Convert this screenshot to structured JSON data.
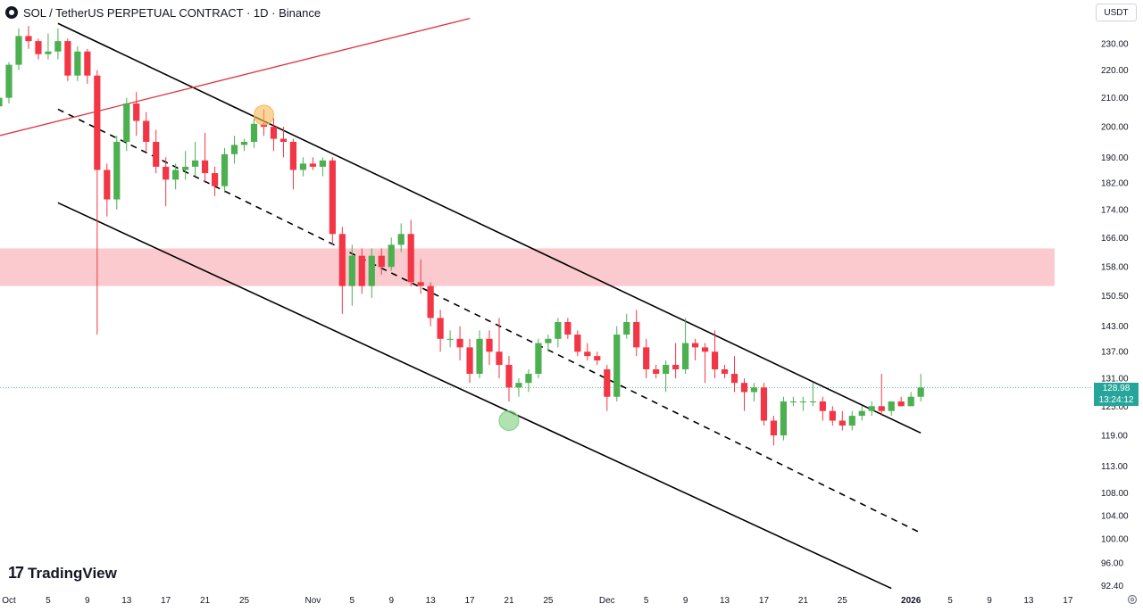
{
  "header": {
    "title": "SOL / TetherUS PERPETUAL CONTRACT · 1D · Binance",
    "currency": "USDT"
  },
  "logo_text": "TradingView",
  "last_price": {
    "price": "128.98",
    "countdown": "13:24:12",
    "value": 128.98
  },
  "colors": {
    "up": "#4caf50",
    "down": "#f23645",
    "zone": "#f8b8bd",
    "channel": "#000000",
    "resistance": "#e0303d",
    "price_line": "#26a69a",
    "peak_marker": "#f7b955",
    "low_marker": "#7ccf7e"
  },
  "chart_data": {
    "type": "candlestick",
    "scale": "log",
    "y_ticks": [
      "230.00",
      "220.00",
      "210.00",
      "200.00",
      "190.00",
      "182.00",
      "174.00",
      "166.00",
      "158.00",
      "150.50",
      "143.00",
      "137.00",
      "131.00",
      "125.00",
      "119.00",
      "113.00",
      "108.00",
      "104.00",
      "100.00",
      "96.00",
      "92.40"
    ],
    "y_tick_values": [
      230,
      220,
      210,
      200,
      190,
      182,
      174,
      166,
      158,
      150.5,
      143,
      137,
      131,
      125,
      119,
      113,
      108,
      104,
      100,
      96,
      92.4
    ],
    "x_ticks": [
      {
        "label": "Oct",
        "date": "2025-10-01"
      },
      {
        "label": "5",
        "date": "2025-10-05"
      },
      {
        "label": "9",
        "date": "2025-10-09"
      },
      {
        "label": "13",
        "date": "2025-10-13"
      },
      {
        "label": "17",
        "date": "2025-10-17"
      },
      {
        "label": "21",
        "date": "2025-10-21"
      },
      {
        "label": "25",
        "date": "2025-10-25"
      },
      {
        "label": "Nov",
        "date": "2025-11-01"
      },
      {
        "label": "5",
        "date": "2025-11-05"
      },
      {
        "label": "9",
        "date": "2025-11-09"
      },
      {
        "label": "13",
        "date": "2025-11-13"
      },
      {
        "label": "17",
        "date": "2025-11-17"
      },
      {
        "label": "21",
        "date": "2025-11-21"
      },
      {
        "label": "25",
        "date": "2025-11-25"
      },
      {
        "label": "Dec",
        "date": "2025-12-01"
      },
      {
        "label": "5",
        "date": "2025-12-05"
      },
      {
        "label": "9",
        "date": "2025-12-09"
      },
      {
        "label": "13",
        "date": "2025-12-13"
      },
      {
        "label": "17",
        "date": "2025-12-17"
      },
      {
        "label": "21",
        "date": "2025-12-21"
      },
      {
        "label": "25",
        "date": "2025-12-25"
      },
      {
        "label": "2026",
        "date": "2026-01-01",
        "bold": true
      },
      {
        "label": "5",
        "date": "2026-01-05"
      },
      {
        "label": "9",
        "date": "2026-01-09"
      },
      {
        "label": "13",
        "date": "2026-01-13"
      },
      {
        "label": "17",
        "date": "2026-01-17"
      }
    ],
    "candles": [
      {
        "date": "2025-09-30",
        "o": 207,
        "h": 212,
        "l": 205,
        "c": 210
      },
      {
        "date": "2025-10-01",
        "o": 210,
        "h": 223,
        "l": 208,
        "c": 222
      },
      {
        "date": "2025-10-02",
        "o": 222,
        "h": 236,
        "l": 220,
        "c": 233
      },
      {
        "date": "2025-10-03",
        "o": 233,
        "h": 237,
        "l": 228,
        "c": 231
      },
      {
        "date": "2025-10-04",
        "o": 231,
        "h": 232,
        "l": 224,
        "c": 226
      },
      {
        "date": "2025-10-05",
        "o": 226,
        "h": 234,
        "l": 224,
        "c": 227
      },
      {
        "date": "2025-10-06",
        "o": 227,
        "h": 236,
        "l": 224,
        "c": 231
      },
      {
        "date": "2025-10-07",
        "o": 231,
        "h": 232,
        "l": 216,
        "c": 218
      },
      {
        "date": "2025-10-08",
        "o": 218,
        "h": 229,
        "l": 216,
        "c": 227
      },
      {
        "date": "2025-10-09",
        "o": 227,
        "h": 228,
        "l": 215,
        "c": 218
      },
      {
        "date": "2025-10-10",
        "o": 218,
        "h": 220,
        "l": 141,
        "c": 186
      },
      {
        "date": "2025-10-11",
        "o": 186,
        "h": 188,
        "l": 172,
        "c": 177
      },
      {
        "date": "2025-10-12",
        "o": 177,
        "h": 197,
        "l": 174,
        "c": 195
      },
      {
        "date": "2025-10-13",
        "o": 195,
        "h": 210,
        "l": 192,
        "c": 208
      },
      {
        "date": "2025-10-14",
        "o": 208,
        "h": 212,
        "l": 197,
        "c": 202
      },
      {
        "date": "2025-10-15",
        "o": 202,
        "h": 205,
        "l": 192,
        "c": 195
      },
      {
        "date": "2025-10-16",
        "o": 195,
        "h": 199,
        "l": 185,
        "c": 187
      },
      {
        "date": "2025-10-17",
        "o": 187,
        "h": 190,
        "l": 175,
        "c": 183
      },
      {
        "date": "2025-10-18",
        "o": 183,
        "h": 188,
        "l": 180,
        "c": 186
      },
      {
        "date": "2025-10-19",
        "o": 186,
        "h": 192,
        "l": 183,
        "c": 187
      },
      {
        "date": "2025-10-20",
        "o": 187,
        "h": 195,
        "l": 184,
        "c": 189
      },
      {
        "date": "2025-10-21",
        "o": 189,
        "h": 198,
        "l": 182,
        "c": 185
      },
      {
        "date": "2025-10-22",
        "o": 185,
        "h": 187,
        "l": 178,
        "c": 181
      },
      {
        "date": "2025-10-23",
        "o": 181,
        "h": 193,
        "l": 179,
        "c": 191
      },
      {
        "date": "2025-10-24",
        "o": 191,
        "h": 197,
        "l": 188,
        "c": 194
      },
      {
        "date": "2025-10-25",
        "o": 194,
        "h": 196,
        "l": 192,
        "c": 195
      },
      {
        "date": "2025-10-26",
        "o": 195,
        "h": 203,
        "l": 193,
        "c": 201
      },
      {
        "date": "2025-10-27",
        "o": 201,
        "h": 206,
        "l": 197,
        "c": 200
      },
      {
        "date": "2025-10-28",
        "o": 200,
        "h": 203,
        "l": 192,
        "c": 196
      },
      {
        "date": "2025-10-29",
        "o": 196,
        "h": 200,
        "l": 190,
        "c": 195
      },
      {
        "date": "2025-10-30",
        "o": 195,
        "h": 196,
        "l": 180,
        "c": 186
      },
      {
        "date": "2025-10-31",
        "o": 186,
        "h": 190,
        "l": 184,
        "c": 188
      },
      {
        "date": "2025-11-01",
        "o": 188,
        "h": 190,
        "l": 186,
        "c": 187
      },
      {
        "date": "2025-11-02",
        "o": 187,
        "h": 190,
        "l": 184,
        "c": 189
      },
      {
        "date": "2025-11-03",
        "o": 189,
        "h": 190,
        "l": 164,
        "c": 167
      },
      {
        "date": "2025-11-04",
        "o": 167,
        "h": 169,
        "l": 146,
        "c": 153
      },
      {
        "date": "2025-11-05",
        "o": 153,
        "h": 164,
        "l": 148,
        "c": 161
      },
      {
        "date": "2025-11-06",
        "o": 161,
        "h": 163,
        "l": 151,
        "c": 153
      },
      {
        "date": "2025-11-07",
        "o": 153,
        "h": 163,
        "l": 150,
        "c": 161
      },
      {
        "date": "2025-11-08",
        "o": 161,
        "h": 163,
        "l": 156,
        "c": 158
      },
      {
        "date": "2025-11-09",
        "o": 158,
        "h": 166,
        "l": 157,
        "c": 164
      },
      {
        "date": "2025-11-10",
        "o": 164,
        "h": 170,
        "l": 162,
        "c": 167
      },
      {
        "date": "2025-11-11",
        "o": 167,
        "h": 171,
        "l": 153,
        "c": 154
      },
      {
        "date": "2025-11-12",
        "o": 154,
        "h": 160,
        "l": 151,
        "c": 153
      },
      {
        "date": "2025-11-13",
        "o": 153,
        "h": 154,
        "l": 143,
        "c": 145
      },
      {
        "date": "2025-11-14",
        "o": 145,
        "h": 147,
        "l": 137,
        "c": 140
      },
      {
        "date": "2025-11-15",
        "o": 140,
        "h": 142,
        "l": 138,
        "c": 140
      },
      {
        "date": "2025-11-16",
        "o": 140,
        "h": 143,
        "l": 135,
        "c": 138
      },
      {
        "date": "2025-11-17",
        "o": 138,
        "h": 140,
        "l": 130,
        "c": 132
      },
      {
        "date": "2025-11-18",
        "o": 132,
        "h": 142,
        "l": 131,
        "c": 140
      },
      {
        "date": "2025-11-19",
        "o": 140,
        "h": 142,
        "l": 134,
        "c": 137
      },
      {
        "date": "2025-11-20",
        "o": 137,
        "h": 145,
        "l": 131,
        "c": 134
      },
      {
        "date": "2025-11-21",
        "o": 134,
        "h": 136,
        "l": 126,
        "c": 129
      },
      {
        "date": "2025-11-22",
        "o": 129,
        "h": 131,
        "l": 127,
        "c": 130
      },
      {
        "date": "2025-11-23",
        "o": 130,
        "h": 133,
        "l": 128,
        "c": 132
      },
      {
        "date": "2025-11-24",
        "o": 132,
        "h": 140,
        "l": 131,
        "c": 139
      },
      {
        "date": "2025-11-25",
        "o": 139,
        "h": 141,
        "l": 137,
        "c": 140
      },
      {
        "date": "2025-11-26",
        "o": 140,
        "h": 145,
        "l": 138,
        "c": 144
      },
      {
        "date": "2025-11-27",
        "o": 144,
        "h": 145,
        "l": 140,
        "c": 141
      },
      {
        "date": "2025-11-28",
        "o": 141,
        "h": 142,
        "l": 136,
        "c": 137
      },
      {
        "date": "2025-11-29",
        "o": 137,
        "h": 139,
        "l": 135,
        "c": 136
      },
      {
        "date": "2025-11-30",
        "o": 136,
        "h": 137,
        "l": 134,
        "c": 135
      },
      {
        "date": "2025-12-01",
        "o": 133,
        "h": 134,
        "l": 124,
        "c": 127
      },
      {
        "date": "2025-12-02",
        "o": 127,
        "h": 143,
        "l": 126,
        "c": 141
      },
      {
        "date": "2025-12-03",
        "o": 141,
        "h": 146,
        "l": 140,
        "c": 144
      },
      {
        "date": "2025-12-04",
        "o": 144,
        "h": 147,
        "l": 136,
        "c": 138
      },
      {
        "date": "2025-12-05",
        "o": 138,
        "h": 140,
        "l": 131,
        "c": 133
      },
      {
        "date": "2025-12-06",
        "o": 133,
        "h": 134,
        "l": 131,
        "c": 132
      },
      {
        "date": "2025-12-07",
        "o": 132,
        "h": 135,
        "l": 128,
        "c": 134
      },
      {
        "date": "2025-12-08",
        "o": 134,
        "h": 139,
        "l": 131,
        "c": 133
      },
      {
        "date": "2025-12-09",
        "o": 133,
        "h": 145,
        "l": 132,
        "c": 139
      },
      {
        "date": "2025-12-10",
        "o": 139,
        "h": 140,
        "l": 135,
        "c": 138
      },
      {
        "date": "2025-12-11",
        "o": 138,
        "h": 139,
        "l": 130,
        "c": 137
      },
      {
        "date": "2025-12-12",
        "o": 137,
        "h": 142,
        "l": 131,
        "c": 133
      },
      {
        "date": "2025-12-13",
        "o": 133,
        "h": 134,
        "l": 131,
        "c": 132
      },
      {
        "date": "2025-12-14",
        "o": 132,
        "h": 136,
        "l": 128,
        "c": 130
      },
      {
        "date": "2025-12-15",
        "o": 130,
        "h": 131,
        "l": 124,
        "c": 128
      },
      {
        "date": "2025-12-16",
        "o": 128,
        "h": 130,
        "l": 126,
        "c": 129
      },
      {
        "date": "2025-12-17",
        "o": 129,
        "h": 130,
        "l": 121,
        "c": 122
      },
      {
        "date": "2025-12-18",
        "o": 122,
        "h": 123,
        "l": 117,
        "c": 119
      },
      {
        "date": "2025-12-19",
        "o": 119,
        "h": 127,
        "l": 118,
        "c": 126
      },
      {
        "date": "2025-12-20",
        "o": 126,
        "h": 127,
        "l": 125,
        "c": 126
      },
      {
        "date": "2025-12-21",
        "o": 126,
        "h": 127,
        "l": 124,
        "c": 126
      },
      {
        "date": "2025-12-22",
        "o": 126,
        "h": 130,
        "l": 125,
        "c": 126
      },
      {
        "date": "2025-12-23",
        "o": 126,
        "h": 127,
        "l": 122,
        "c": 124
      },
      {
        "date": "2025-12-24",
        "o": 124,
        "h": 125,
        "l": 121,
        "c": 122
      },
      {
        "date": "2025-12-25",
        "o": 122,
        "h": 124,
        "l": 120,
        "c": 121
      },
      {
        "date": "2025-12-26",
        "o": 121,
        "h": 124,
        "l": 120,
        "c": 123
      },
      {
        "date": "2025-12-27",
        "o": 123,
        "h": 125,
        "l": 122,
        "c": 124
      },
      {
        "date": "2025-12-28",
        "o": 124,
        "h": 126,
        "l": 123,
        "c": 125
      },
      {
        "date": "2025-12-29",
        "o": 125,
        "h": 132,
        "l": 123,
        "c": 124
      },
      {
        "date": "2025-12-30",
        "o": 124,
        "h": 126,
        "l": 123,
        "c": 126
      },
      {
        "date": "2025-12-31",
        "o": 126,
        "h": 127,
        "l": 125,
        "c": 125
      },
      {
        "date": "2026-01-01",
        "o": 125,
        "h": 128,
        "l": 125,
        "c": 127
      },
      {
        "date": "2026-01-02",
        "o": 127,
        "h": 132,
        "l": 126,
        "c": 128.98
      }
    ],
    "resistance_zone": {
      "low": 153,
      "high": 163
    },
    "lines": [
      {
        "name": "upper_channel",
        "style": "solid",
        "color": "#000000",
        "points": [
          {
            "date": "2025-10-06",
            "price": 238
          },
          {
            "date": "2026-01-02",
            "price": 119.5
          }
        ]
      },
      {
        "name": "mid_channel",
        "style": "dashed",
        "color": "#000000",
        "points": [
          {
            "date": "2025-10-06",
            "price": 206
          },
          {
            "date": "2026-01-02",
            "price": 101
          }
        ]
      },
      {
        "name": "lower_channel",
        "style": "solid",
        "color": "#000000",
        "points": [
          {
            "date": "2025-10-06",
            "price": 176
          },
          {
            "date": "2025-12-30",
            "price": 92
          }
        ]
      },
      {
        "name": "red_trendline",
        "style": "solid",
        "color": "#e0303d",
        "points": [
          {
            "date": "2025-09-30",
            "price": 197
          },
          {
            "date": "2025-11-17",
            "price": 240
          }
        ]
      }
    ],
    "markers": [
      {
        "name": "peak",
        "date": "2025-10-27",
        "price": 204,
        "color": "#f7b955"
      },
      {
        "name": "low",
        "date": "2025-11-21",
        "price": 122,
        "color": "#7ccf7e"
      }
    ],
    "grid": false
  }
}
